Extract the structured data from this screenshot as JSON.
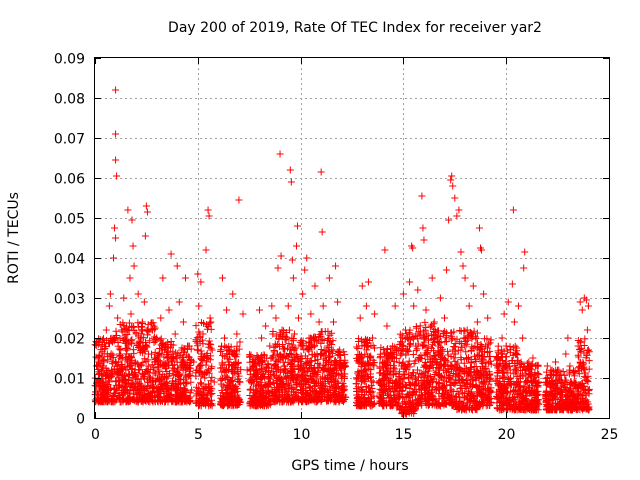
{
  "chart_data": {
    "type": "scatter",
    "title": "Day 200 of 2019, Rate Of TEC Index for receiver yar2",
    "xlabel": "GPS time / hours",
    "ylabel": "ROTI / TECUs",
    "xlim": [
      0,
      25
    ],
    "ylim": [
      0,
      0.09
    ],
    "xticks": [
      0,
      5,
      10,
      15,
      20,
      25
    ],
    "xtick_labels": [
      "0",
      "5",
      "10",
      "15",
      "20",
      "25"
    ],
    "yticks": [
      0,
      0.01,
      0.02,
      0.03,
      0.04,
      0.05,
      0.06,
      0.07,
      0.08,
      0.09
    ],
    "ytick_labels": [
      "0",
      "0.01",
      "0.02",
      "0.03",
      "0.04",
      "0.05",
      "0.06",
      "0.07",
      "0.08",
      "0.09"
    ],
    "grid": true,
    "marker": "plus",
    "marker_color": "#ff0000",
    "series": [
      {
        "points": [
          [
            0.05,
            0.0065
          ],
          [
            0.1,
            0.009
          ],
          [
            0.15,
            0.015
          ],
          [
            0.2,
            0.011
          ],
          [
            0.25,
            0.007
          ],
          [
            0.3,
            0.012
          ],
          [
            0.35,
            0.018
          ],
          [
            0.4,
            0.013
          ],
          [
            0.45,
            0.006
          ],
          [
            0.5,
            0.009
          ],
          [
            0.55,
            0.022
          ],
          [
            0.6,
            0.016
          ],
          [
            0.65,
            0.01
          ],
          [
            0.7,
            0.028
          ],
          [
            0.75,
            0.031
          ],
          [
            0.8,
            0.012
          ],
          [
            0.85,
            0.019
          ],
          [
            0.9,
            0.04
          ],
          [
            0.95,
            0.0475
          ],
          [
            1.0,
            0.082
          ],
          [
            1.0,
            0.071
          ],
          [
            1.0,
            0.0645
          ],
          [
            1.05,
            0.0605
          ],
          [
            1.0,
            0.045
          ],
          [
            1.1,
            0.025
          ],
          [
            1.15,
            0.014
          ],
          [
            1.2,
            0.008
          ],
          [
            1.25,
            0.017
          ],
          [
            1.3,
            0.022
          ],
          [
            1.35,
            0.011
          ],
          [
            1.4,
            0.03
          ],
          [
            1.45,
            0.02
          ],
          [
            1.5,
            0.012
          ],
          [
            1.55,
            0.007
          ],
          [
            1.6,
            0.052
          ],
          [
            1.65,
            0.019
          ],
          [
            1.7,
            0.035
          ],
          [
            1.75,
            0.026
          ],
          [
            1.8,
            0.0495
          ],
          [
            1.85,
            0.043
          ],
          [
            1.9,
            0.038
          ],
          [
            1.95,
            0.014
          ],
          [
            2.0,
            0.021
          ],
          [
            2.05,
            0.009
          ],
          [
            2.1,
            0.031
          ],
          [
            2.15,
            0.018
          ],
          [
            2.2,
            0.013
          ],
          [
            2.3,
            0.024
          ],
          [
            2.4,
            0.029
          ],
          [
            2.45,
            0.0455
          ],
          [
            2.5,
            0.053
          ],
          [
            2.55,
            0.0515
          ],
          [
            2.6,
            0.016
          ],
          [
            2.7,
            0.01
          ],
          [
            2.8,
            0.022
          ],
          [
            2.9,
            0.014
          ],
          [
            3.0,
            0.02
          ],
          [
            3.1,
            0.012
          ],
          [
            3.2,
            0.025
          ],
          [
            3.3,
            0.035
          ],
          [
            3.4,
            0.018
          ],
          [
            3.5,
            0.009
          ],
          [
            3.6,
            0.027
          ],
          [
            3.7,
            0.041
          ],
          [
            3.8,
            0.015
          ],
          [
            3.9,
            0.021
          ],
          [
            4.0,
            0.038
          ],
          [
            4.1,
            0.029
          ],
          [
            4.2,
            0.013
          ],
          [
            4.3,
            0.024
          ],
          [
            4.4,
            0.035
          ],
          [
            4.5,
            0.018
          ],
          [
            4.6,
            0.011
          ],
          [
            4.7,
            0.007
          ],
          [
            4.8,
            0.014
          ],
          [
            5.0,
            0.036
          ],
          [
            5.05,
            0.028
          ],
          [
            5.1,
            0.021
          ],
          [
            5.15,
            0.034
          ],
          [
            5.2,
            0.016
          ],
          [
            5.3,
            0.011
          ],
          [
            5.4,
            0.042
          ],
          [
            5.45,
            0.005
          ],
          [
            5.5,
            0.052
          ],
          [
            5.55,
            0.0505
          ],
          [
            5.6,
            0.025
          ],
          [
            5.7,
            0.017
          ],
          [
            5.8,
            0.009
          ],
          [
            6.2,
            0.035
          ],
          [
            6.3,
            0.02
          ],
          [
            6.4,
            0.027
          ],
          [
            6.5,
            0.012
          ],
          [
            6.6,
            0.008
          ],
          [
            6.7,
            0.031
          ],
          [
            6.8,
            0.016
          ],
          [
            6.9,
            0.021
          ],
          [
            7.0,
            0.0545
          ],
          [
            7.05,
            0.019
          ],
          [
            7.2,
            0.026
          ],
          [
            7.4,
            0.012
          ],
          [
            7.6,
            0.009
          ],
          [
            7.8,
            0.007
          ],
          [
            7.9,
            0.015
          ],
          [
            8.0,
            0.027
          ],
          [
            8.1,
            0.02
          ],
          [
            8.2,
            0.011
          ],
          [
            8.3,
            0.023
          ],
          [
            8.4,
            0.008
          ],
          [
            8.5,
            0.018
          ],
          [
            8.6,
            0.028
          ],
          [
            8.7,
            0.013
          ],
          [
            8.8,
            0.025
          ],
          [
            8.9,
            0.0375
          ],
          [
            9.0,
            0.066
          ],
          [
            9.05,
            0.0405
          ],
          [
            9.1,
            0.022
          ],
          [
            9.2,
            0.016
          ],
          [
            9.3,
            0.01
          ],
          [
            9.4,
            0.028
          ],
          [
            9.5,
            0.062
          ],
          [
            9.55,
            0.059
          ],
          [
            9.6,
            0.0395
          ],
          [
            9.65,
            0.035
          ],
          [
            9.7,
            0.021
          ],
          [
            9.8,
            0.043
          ],
          [
            9.85,
            0.048
          ],
          [
            9.9,
            0.025
          ],
          [
            10.0,
            0.013
          ],
          [
            10.1,
            0.031
          ],
          [
            10.2,
            0.037
          ],
          [
            10.3,
            0.04
          ],
          [
            10.4,
            0.019
          ],
          [
            10.5,
            0.026
          ],
          [
            10.6,
            0.011
          ],
          [
            10.7,
            0.033
          ],
          [
            10.8,
            0.016
          ],
          [
            10.9,
            0.024
          ],
          [
            11.0,
            0.0615
          ],
          [
            11.05,
            0.0465
          ],
          [
            11.1,
            0.028
          ],
          [
            11.2,
            0.013
          ],
          [
            11.3,
            0.018
          ],
          [
            11.4,
            0.035
          ],
          [
            11.5,
            0.01
          ],
          [
            11.6,
            0.024
          ],
          [
            11.7,
            0.038
          ],
          [
            11.8,
            0.029
          ],
          [
            11.9,
            0.017
          ],
          [
            12.0,
            0.012
          ],
          [
            12.1,
            0.007
          ],
          [
            12.8,
            0.015
          ],
          [
            12.9,
            0.025
          ],
          [
            13.0,
            0.033
          ],
          [
            13.1,
            0.018
          ],
          [
            13.2,
            0.028
          ],
          [
            13.3,
            0.034
          ],
          [
            13.4,
            0.011
          ],
          [
            13.5,
            0.02
          ],
          [
            13.6,
            0.026
          ],
          [
            13.8,
            0.009
          ],
          [
            14.0,
            0.014
          ],
          [
            14.1,
            0.042
          ],
          [
            14.2,
            0.023
          ],
          [
            14.4,
            0.016
          ],
          [
            14.6,
            0.028
          ],
          [
            14.8,
            0.011
          ],
          [
            15.0,
            0.031
          ],
          [
            15.1,
            0.022
          ],
          [
            15.2,
            0.017
          ],
          [
            15.3,
            0.034
          ],
          [
            15.4,
            0.043
          ],
          [
            15.45,
            0.0425
          ],
          [
            15.5,
            0.028
          ],
          [
            15.6,
            0.018
          ],
          [
            15.7,
            0.032
          ],
          [
            15.8,
            0.011
          ],
          [
            15.9,
            0.0555
          ],
          [
            15.95,
            0.0475
          ],
          [
            16.0,
            0.0445
          ],
          [
            16.1,
            0.027
          ],
          [
            16.2,
            0.021
          ],
          [
            16.3,
            0.014
          ],
          [
            16.4,
            0.035
          ],
          [
            16.5,
            0.024
          ],
          [
            16.6,
            0.009
          ],
          [
            16.7,
            0.018
          ],
          [
            16.8,
            0.03
          ],
          [
            16.9,
            0.015
          ],
          [
            17.0,
            0.025
          ],
          [
            17.1,
            0.037
          ],
          [
            17.2,
            0.0495
          ],
          [
            17.3,
            0.0595
          ],
          [
            17.35,
            0.0605
          ],
          [
            17.4,
            0.058
          ],
          [
            17.5,
            0.055
          ],
          [
            17.6,
            0.0505
          ],
          [
            17.7,
            0.052
          ],
          [
            17.8,
            0.0415
          ],
          [
            17.9,
            0.038
          ],
          [
            18.0,
            0.035
          ],
          [
            18.1,
            0.022
          ],
          [
            18.2,
            0.028
          ],
          [
            18.3,
            0.014
          ],
          [
            18.4,
            0.033
          ],
          [
            18.5,
            0.01
          ],
          [
            18.6,
            0.024
          ],
          [
            18.7,
            0.0475
          ],
          [
            18.75,
            0.0425
          ],
          [
            18.8,
            0.042
          ],
          [
            18.9,
            0.031
          ],
          [
            19.0,
            0.018
          ],
          [
            19.1,
            0.025
          ],
          [
            19.2,
            0.011
          ],
          [
            19.6,
            0.013
          ],
          [
            19.8,
            0.02
          ],
          [
            19.9,
            0.026
          ],
          [
            20.0,
            0.018
          ],
          [
            20.1,
            0.029
          ],
          [
            20.2,
            0.012
          ],
          [
            20.3,
            0.0335
          ],
          [
            20.35,
            0.052
          ],
          [
            20.4,
            0.024
          ],
          [
            20.5,
            0.016
          ],
          [
            20.6,
            0.028
          ],
          [
            20.7,
            0.011
          ],
          [
            20.8,
            0.02
          ],
          [
            20.85,
            0.0375
          ],
          [
            20.9,
            0.0415
          ],
          [
            21.0,
            0.007
          ],
          [
            21.1,
            0.014
          ],
          [
            21.2,
            0.011
          ],
          [
            21.3,
            0.015
          ],
          [
            21.4,
            0.009
          ],
          [
            21.5,
            0.006
          ],
          [
            22.0,
            0.013
          ],
          [
            22.2,
            0.009
          ],
          [
            22.4,
            0.014
          ],
          [
            22.5,
            0.012
          ],
          [
            22.7,
            0.008
          ],
          [
            22.9,
            0.016
          ],
          [
            23.0,
            0.02
          ],
          [
            23.1,
            0.013
          ],
          [
            23.3,
            0.009
          ],
          [
            23.5,
            0.018
          ],
          [
            23.6,
            0.029
          ],
          [
            23.7,
            0.027
          ],
          [
            23.8,
            0.03
          ],
          [
            23.9,
            0.0295
          ],
          [
            23.95,
            0.022
          ],
          [
            24.0,
            0.028
          ]
        ],
        "dense_clusters": [
          [
            0.0,
            1.0,
            0.004,
            0.02
          ],
          [
            1.0,
            2.0,
            0.004,
            0.024
          ],
          [
            2.0,
            3.0,
            0.004,
            0.024
          ],
          [
            3.0,
            4.0,
            0.004,
            0.02
          ],
          [
            4.0,
            4.7,
            0.004,
            0.018
          ],
          [
            4.9,
            5.7,
            0.003,
            0.024
          ],
          [
            6.1,
            7.1,
            0.003,
            0.018
          ],
          [
            7.5,
            8.6,
            0.003,
            0.016
          ],
          [
            8.6,
            9.6,
            0.004,
            0.022
          ],
          [
            9.6,
            10.6,
            0.004,
            0.02
          ],
          [
            10.6,
            11.6,
            0.004,
            0.022
          ],
          [
            11.6,
            12.2,
            0.004,
            0.017
          ],
          [
            12.7,
            13.6,
            0.003,
            0.02
          ],
          [
            13.8,
            14.8,
            0.003,
            0.018
          ],
          [
            14.8,
            15.6,
            0.001,
            0.022
          ],
          [
            15.6,
            16.6,
            0.003,
            0.024
          ],
          [
            16.6,
            17.6,
            0.003,
            0.022
          ],
          [
            17.6,
            18.6,
            0.002,
            0.022
          ],
          [
            18.6,
            19.3,
            0.003,
            0.02
          ],
          [
            19.5,
            20.6,
            0.002,
            0.018
          ],
          [
            20.6,
            21.6,
            0.002,
            0.014
          ],
          [
            21.9,
            23.0,
            0.002,
            0.012
          ],
          [
            23.0,
            23.5,
            0.002,
            0.012
          ],
          [
            23.5,
            24.05,
            0.002,
            0.02
          ]
        ]
      }
    ]
  }
}
